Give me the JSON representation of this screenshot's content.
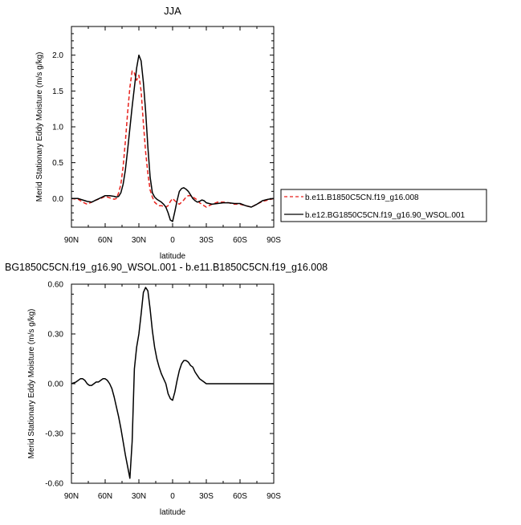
{
  "chart_data": [
    {
      "type": "line",
      "title": "JJA",
      "xlabel": "latitude",
      "ylabel": "Merid Stationary Eddy Moisture (m/s g/kg)",
      "xlim": [
        90,
        -90
      ],
      "ylim": [
        -0.4,
        2.4
      ],
      "x_ticks": [
        90,
        60,
        30,
        0,
        -30,
        -60,
        -90
      ],
      "x_tick_labels": [
        "90N",
        "60N",
        "30N",
        "0",
        "30S",
        "60S",
        "90S"
      ],
      "y_ticks": [
        0.0,
        0.5,
        1.0,
        1.5,
        2.0
      ],
      "y_tick_labels": [
        "0.0",
        "0.5",
        "1.0",
        "1.5",
        "2.0"
      ],
      "legend_position": "right",
      "series": [
        {
          "name": "b.e11.B1850C5CN.f19_g16.008",
          "color": "#e8211c",
          "dash": "dashed",
          "x": [
            90,
            84,
            80,
            76,
            72,
            68,
            64,
            60,
            56,
            52,
            50,
            48,
            46,
            44,
            42,
            40,
            38,
            36,
            34,
            32,
            30,
            28,
            26,
            24,
            22,
            20,
            18,
            16,
            14,
            12,
            10,
            8,
            6,
            4,
            2,
            0,
            -2,
            -4,
            -6,
            -8,
            -10,
            -12,
            -14,
            -16,
            -18,
            -20,
            -22,
            -24,
            -26,
            -28,
            -30,
            -35,
            -40,
            -45,
            -50,
            -55,
            -60,
            -65,
            -70,
            -75,
            -80,
            -85,
            -90
          ],
          "y": [
            0.0,
            -0.01,
            -0.05,
            -0.08,
            -0.05,
            -0.02,
            0.0,
            0.03,
            0.01,
            -0.01,
            0.0,
            0.08,
            0.2,
            0.45,
            0.8,
            1.2,
            1.55,
            1.78,
            1.75,
            1.65,
            1.72,
            1.5,
            1.05,
            0.65,
            0.35,
            0.12,
            0.02,
            -0.05,
            -0.08,
            -0.1,
            -0.1,
            -0.11,
            -0.12,
            -0.1,
            -0.04,
            0.0,
            -0.03,
            -0.06,
            -0.08,
            -0.05,
            -0.02,
            0.02,
            0.04,
            0.04,
            0.02,
            0.0,
            -0.02,
            -0.06,
            -0.08,
            -0.1,
            -0.12,
            -0.08,
            -0.05,
            -0.05,
            -0.06,
            -0.08,
            -0.08,
            -0.1,
            -0.12,
            -0.08,
            -0.04,
            -0.02,
            0.0
          ]
        },
        {
          "name": "b.e12.BG1850C5CN.f19_g16.90_WSOL.001",
          "color": "#000000",
          "dash": "solid",
          "x": [
            90,
            84,
            80,
            76,
            72,
            68,
            64,
            60,
            56,
            52,
            50,
            48,
            46,
            44,
            42,
            40,
            38,
            36,
            34,
            32,
            30,
            28,
            26,
            24,
            22,
            20,
            18,
            16,
            14,
            12,
            10,
            8,
            6,
            4,
            2,
            0,
            -2,
            -4,
            -6,
            -8,
            -10,
            -12,
            -14,
            -16,
            -18,
            -20,
            -22,
            -24,
            -26,
            -28,
            -30,
            -35,
            -40,
            -45,
            -50,
            -55,
            -60,
            -65,
            -70,
            -75,
            -80,
            -85,
            -90
          ],
          "y": [
            0.0,
            0.0,
            -0.02,
            -0.04,
            -0.05,
            -0.02,
            0.01,
            0.04,
            0.04,
            0.03,
            0.02,
            0.03,
            0.08,
            0.2,
            0.4,
            0.68,
            0.98,
            1.28,
            1.55,
            1.82,
            2.0,
            1.92,
            1.62,
            1.22,
            0.72,
            0.3,
            0.08,
            0.02,
            -0.01,
            -0.03,
            -0.05,
            -0.08,
            -0.12,
            -0.2,
            -0.3,
            -0.32,
            -0.18,
            -0.03,
            0.1,
            0.14,
            0.15,
            0.13,
            0.1,
            0.05,
            0.0,
            -0.03,
            -0.05,
            -0.04,
            -0.02,
            -0.03,
            -0.06,
            -0.08,
            -0.07,
            -0.06,
            -0.06,
            -0.07,
            -0.07,
            -0.1,
            -0.12,
            -0.08,
            -0.03,
            -0.01,
            0.0
          ]
        }
      ]
    },
    {
      "type": "line",
      "title": "BG1850C5CN.f19_g16.90_WSOL.001 - b.e11.B1850C5CN.f19_g16.008",
      "xlabel": "latitude",
      "ylabel": "Merid Stationary Eddy Moisture (m/s g/kg)",
      "xlim": [
        90,
        -90
      ],
      "ylim": [
        -0.6,
        0.6
      ],
      "x_ticks": [
        90,
        60,
        30,
        0,
        -30,
        -60,
        -90
      ],
      "x_tick_labels": [
        "90N",
        "60N",
        "30N",
        "0",
        "30S",
        "60S",
        "90S"
      ],
      "y_ticks": [
        -0.6,
        -0.3,
        0.0,
        0.3,
        0.6
      ],
      "y_tick_labels": [
        "-0.60",
        "-0.30",
        "0.00",
        "0.30",
        "0.60"
      ],
      "series": [
        {
          "color": "#000000",
          "dash": "solid",
          "x": [
            90,
            86,
            82,
            80,
            78,
            76,
            74,
            72,
            70,
            68,
            66,
            64,
            62,
            60,
            58,
            56,
            54,
            52,
            50,
            48,
            46,
            44,
            42,
            40,
            38,
            36,
            34,
            32,
            30,
            28,
            26,
            24,
            22,
            20,
            18,
            16,
            14,
            12,
            10,
            8,
            6,
            4,
            2,
            0,
            -2,
            -4,
            -6,
            -8,
            -10,
            -12,
            -14,
            -16,
            -18,
            -20,
            -22,
            -24,
            -26,
            -28,
            -30,
            -35,
            -40,
            -45,
            -50,
            -55,
            -60,
            -65,
            -70,
            -75,
            -80,
            -85,
            -90
          ],
          "y": [
            0.0,
            0.01,
            0.03,
            0.03,
            0.02,
            0.0,
            -0.01,
            -0.01,
            0.0,
            0.01,
            0.01,
            0.02,
            0.03,
            0.03,
            0.02,
            0.0,
            -0.03,
            -0.08,
            -0.14,
            -0.2,
            -0.27,
            -0.35,
            -0.43,
            -0.5,
            -0.57,
            -0.35,
            0.09,
            0.22,
            0.3,
            0.42,
            0.55,
            0.58,
            0.56,
            0.45,
            0.32,
            0.22,
            0.15,
            0.1,
            0.06,
            0.03,
            0.0,
            -0.06,
            -0.09,
            -0.1,
            -0.05,
            0.02,
            0.08,
            0.12,
            0.14,
            0.14,
            0.13,
            0.11,
            0.1,
            0.07,
            0.05,
            0.03,
            0.02,
            0.01,
            0.0,
            0.0,
            0.0,
            0.0,
            0.0,
            0.0,
            0.0,
            0.0,
            0.0,
            0.0,
            0.0,
            0.0,
            0.0
          ]
        }
      ]
    }
  ]
}
